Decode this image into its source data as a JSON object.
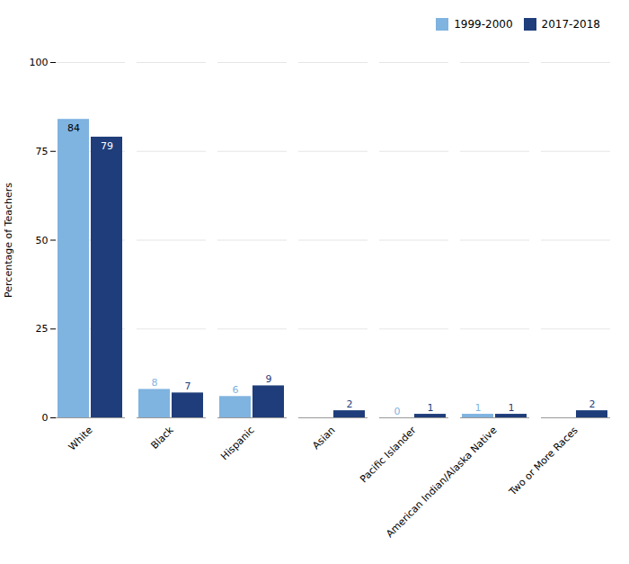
{
  "chart_data": {
    "type": "bar",
    "categories": [
      "White",
      "Black",
      "Hispanic",
      "Asian",
      "Pacific Islander",
      "American Indian/Alaska Native",
      "Two or More Races"
    ],
    "series": [
      {
        "name": "1999-2000",
        "color": "#7fb3e0",
        "values": [
          84,
          8,
          6,
          0,
          0,
          1,
          0
        ],
        "value_labels": [
          "84",
          "8",
          "6",
          null,
          "0",
          "1",
          null
        ]
      },
      {
        "name": "2017-2018",
        "color": "#1f3d7a",
        "values": [
          79,
          7,
          9,
          2,
          1,
          1,
          2
        ]
      }
    ],
    "ylabel": "Percentage of Teachers",
    "ylim": [
      0,
      100
    ],
    "yticks": [
      0,
      25,
      50,
      75,
      100
    ],
    "grid": true,
    "legend": "upper right",
    "data_labels": true
  }
}
